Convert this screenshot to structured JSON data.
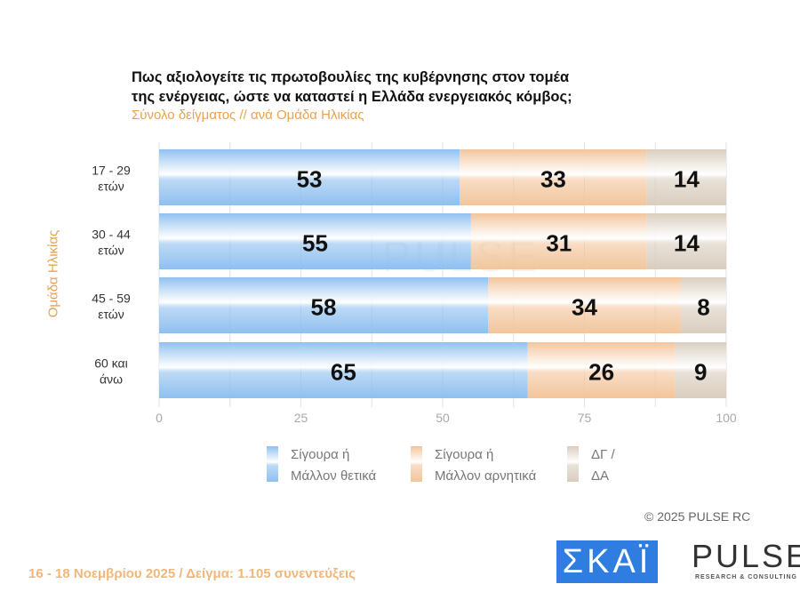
{
  "chart_data": {
    "type": "bar",
    "stacked": true,
    "orientation": "horizontal",
    "title": "Πως αξιολογείτε τις πρωτοβουλίες της κυβέρνησης στον τομέα της ενέργειας, ώστε να καταστεί η Ελλάδα ενεργειακός κόμβος;",
    "title_lines": [
      "Πως αξιολογείτε τις πρωτοβουλίες της κυβέρνησης στον τομέα",
      "της ενέργειας, ώστε να καταστεί η Ελλάδα ενεργειακός κόμβος;"
    ],
    "subtitle": "Σύνολο δείγματος // ανά Ομάδα Ηλικίας",
    "ylabel": "Ομάδα Ηλικίας",
    "categories": [
      [
        "17 - 29",
        "ετών"
      ],
      [
        "30 - 44",
        "ετών"
      ],
      [
        "45 - 59",
        "ετών"
      ],
      [
        "60 και",
        "άνω"
      ]
    ],
    "xlim": [
      0,
      100
    ],
    "xticks": [
      "0",
      "25",
      "50",
      "75",
      "100"
    ],
    "series": [
      {
        "name": [
          "Σίγουρα ή",
          "Μάλλον θετικά"
        ],
        "color": "#8fc0ef",
        "values": [
          53,
          55,
          58,
          65
        ]
      },
      {
        "name": [
          "Σίγουρα ή",
          "Μάλλον αρνητικά"
        ],
        "color": "#f3c59b",
        "values": [
          33,
          31,
          34,
          26
        ]
      },
      {
        "name": [
          "ΔΓ /",
          "ΔΑ"
        ],
        "color": "#d9cdbf",
        "values": [
          14,
          14,
          8,
          9
        ]
      }
    ],
    "legend": "bottom"
  },
  "watermark": "PULSE",
  "copyright": "©  2025  PULSE RC",
  "footer": "16 - 18 Νοεμβρίου 2025  /  Δείγμα:  1.105 συνεντεύξεις",
  "logos": {
    "skai": "ΣΚΑΪ",
    "pulse": "PULSE",
    "pulse_sub": "RESEARCH & CONSULTING"
  }
}
